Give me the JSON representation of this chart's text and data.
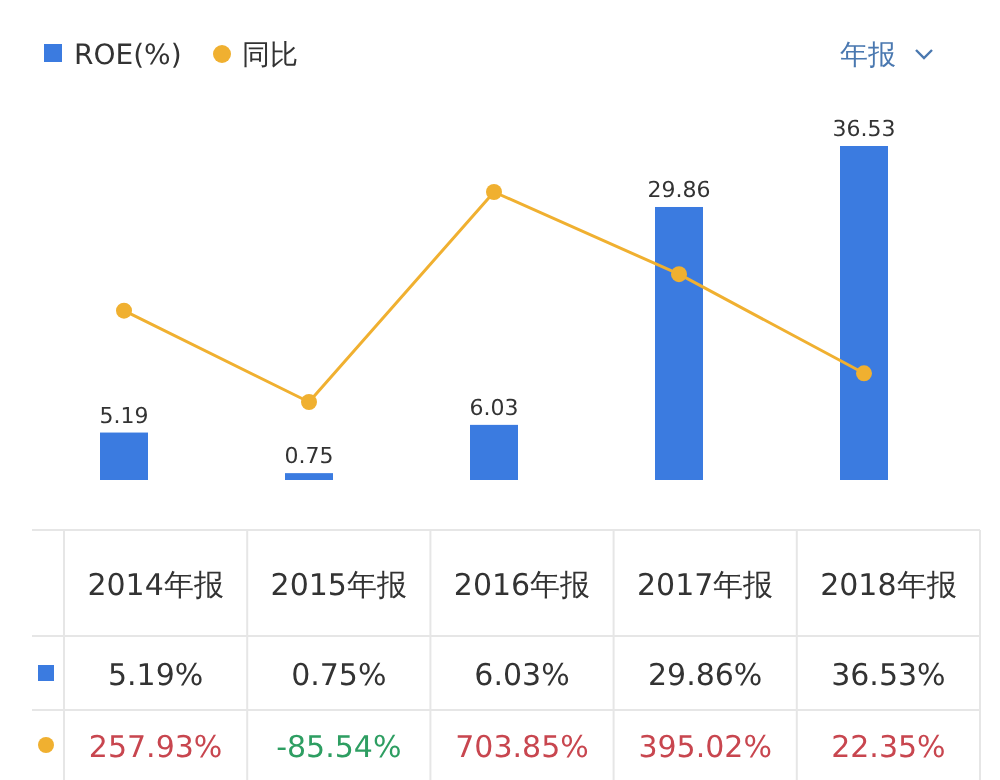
{
  "chart_data": {
    "type": "bar",
    "categories": [
      "2014年报",
      "2015年报",
      "2016年报",
      "2017年报",
      "2018年报"
    ],
    "series": [
      {
        "name": "ROE(%)",
        "color": "#3b7be0",
        "values": [
          5.19,
          0.75,
          6.03,
          29.86,
          36.53
        ],
        "value_labels": [
          "5.19%",
          "0.75%",
          "6.03%",
          "29.86%",
          "36.53%"
        ]
      },
      {
        "name": "同比",
        "type": "line",
        "axis": "y2",
        "color": "#f0b030",
        "marker": "circle",
        "values": [
          257.93,
          -85.54,
          703.85,
          395.02,
          22.35
        ],
        "value_labels": [
          "257.93%",
          "-85.54%",
          "703.85%",
          "395.02%",
          "22.35%"
        ]
      }
    ],
    "legend": "top left",
    "annotations": [
      "年报",
      {
        "text": "5.19",
        "x": "2014年报",
        "y": 5.19
      },
      {
        "text": "0.75",
        "x": "2015年报",
        "y": 0.75
      },
      {
        "text": "6.03",
        "x": "2016年报",
        "y": 6.03
      },
      {
        "text": "29.86",
        "x": "2017年报",
        "y": 29.86
      },
      {
        "text": "36.53",
        "x": "2018年报",
        "y": 36.53
      }
    ]
  }
}
